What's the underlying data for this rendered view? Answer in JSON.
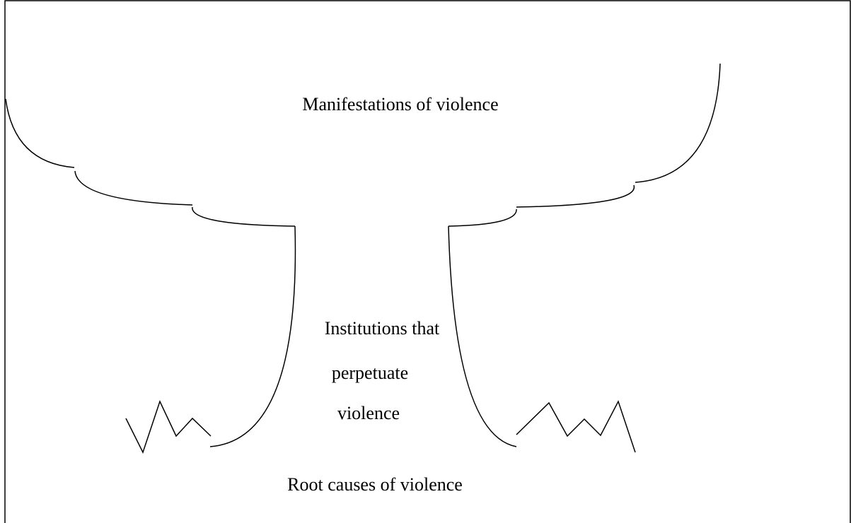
{
  "labels": {
    "top": "Manifestations of violence",
    "middle": [
      "Institutions that",
      "perpetuate",
      "violence"
    ],
    "bottom": "Root causes of violence"
  }
}
